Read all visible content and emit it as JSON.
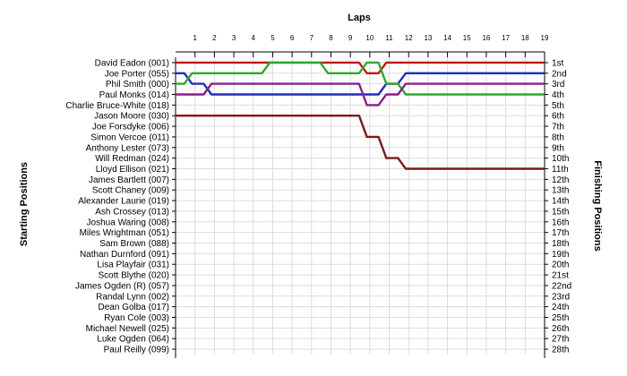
{
  "chart_data": {
    "type": "line",
    "title": "",
    "xlabel": "Laps",
    "ylabel": "Starting Positions",
    "ylabel_right": "Finishing Positions",
    "laps": [
      1,
      2,
      3,
      4,
      5,
      6,
      7,
      8,
      9,
      10,
      11,
      12,
      13,
      14,
      15,
      16,
      17,
      18,
      19
    ],
    "finishing_positions": [
      "1st",
      "2nd",
      "3rd",
      "4th",
      "5th",
      "6th",
      "7th",
      "8th",
      "9th",
      "10th",
      "11th",
      "12th",
      "13th",
      "14th",
      "15th",
      "16th",
      "17th",
      "18th",
      "19th",
      "20th",
      "21st",
      "22nd",
      "23rd",
      "24th",
      "25th",
      "26th",
      "27th",
      "28th"
    ],
    "grid": true,
    "series": [
      {
        "name": "David Eadon (001)",
        "color": "#c01818",
        "positions": [
          1,
          1,
          1,
          1,
          1,
          1,
          1,
          1,
          1,
          1,
          2,
          1,
          1,
          1,
          1,
          1,
          1,
          1,
          1,
          1
        ]
      },
      {
        "name": "Joe Porter (055)",
        "color": "#1d2fc2",
        "positions": [
          2,
          3,
          4,
          4,
          4,
          4,
          4,
          4,
          4,
          4,
          4,
          3,
          2,
          2,
          2,
          2,
          2,
          2,
          2,
          2
        ]
      },
      {
        "name": "Phil Smith (000)",
        "color": "#2ea82e",
        "positions": [
          3,
          2,
          2,
          2,
          2,
          1,
          1,
          1,
          2,
          2,
          1,
          3,
          4,
          4,
          4,
          4,
          4,
          4,
          4,
          4
        ]
      },
      {
        "name": "Paul Monks (014)",
        "color": "#8a1f8a",
        "positions": [
          4,
          4,
          3,
          3,
          3,
          3,
          3,
          3,
          3,
          3,
          5,
          4,
          3,
          3,
          3,
          3,
          3,
          3,
          3,
          3
        ]
      },
      {
        "name": "Jason Moore (030)",
        "color": "#7a1a1a",
        "positions": [
          6,
          6,
          6,
          6,
          6,
          6,
          6,
          6,
          6,
          6,
          8,
          10,
          11,
          11,
          11,
          11,
          11,
          11,
          11,
          11
        ]
      }
    ],
    "starting_grid": [
      "David Eadon (001)",
      "Joe Porter (055)",
      "Phil Smith (000)",
      "Paul Monks (014)",
      "Charlie Bruce-White (018)",
      "Jason Moore (030)",
      "Joe Forsdyke (006)",
      "Simon Vercoe (011)",
      "Anthony Lester (073)",
      "Will Redman (024)",
      "Lloyd Ellison (021)",
      "James Bartlett (007)",
      "Scott Chaney (009)",
      "Alexander Laurie (019)",
      "Ash Crossey (013)",
      "Joshua Waring (008)",
      "Miles Wrightman (051)",
      "Sam Brown (088)",
      "Nathan Durnford (091)",
      "Lisa Playfair (031)",
      "Scott Blythe (020)",
      "James Ogden (R) (057)",
      "Randal Lynn (002)",
      "Dean Golba (017)",
      "Ryan Cole (003)",
      "Michael Newell (025)",
      "Luke Ogden (064)",
      "Paul Reilly (099)"
    ]
  }
}
